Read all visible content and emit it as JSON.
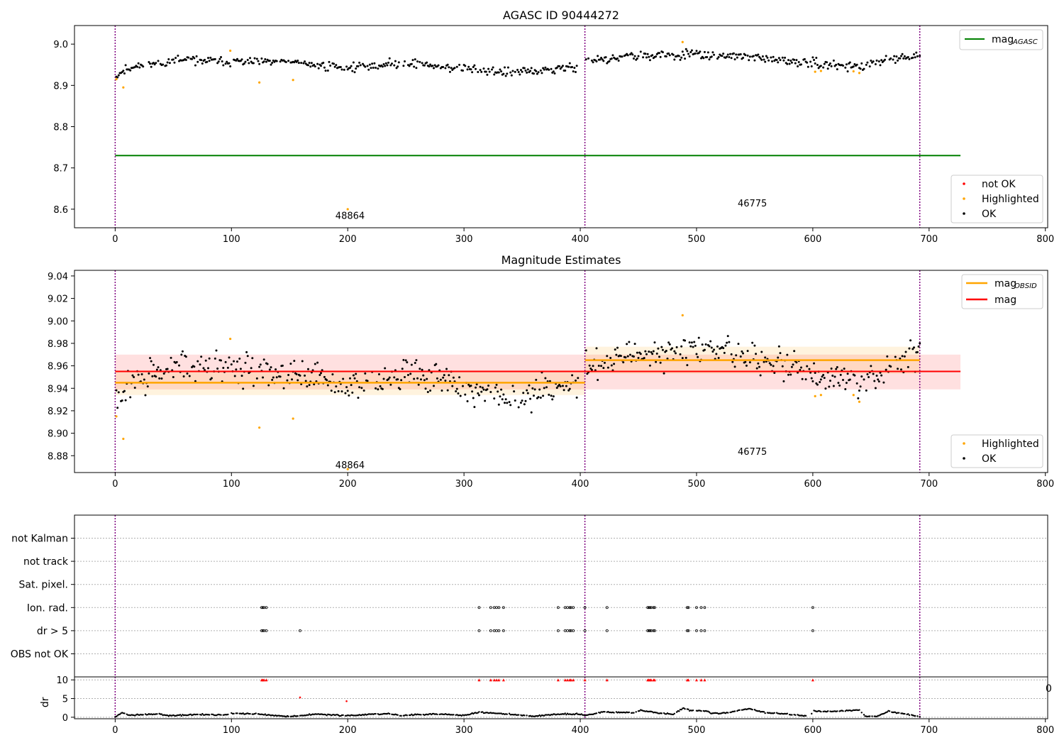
{
  "chart_data": [
    {
      "type": "scatter",
      "title": "AGASC ID 90444272",
      "xlim": [
        -35,
        802
      ],
      "ylim": [
        8.555,
        9.045
      ],
      "x_ticks": [
        0,
        100,
        200,
        300,
        400,
        500,
        600,
        700,
        800
      ],
      "y_ticks": [
        8.6,
        8.7,
        8.8,
        8.9,
        9.0
      ],
      "grid": false,
      "obsid_boundaries": [
        0,
        404,
        692
      ],
      "obsid_labels": [
        {
          "text": "48864",
          "x": 202,
          "y": 8.585
        },
        {
          "text": "46775",
          "x": 548,
          "y": 8.615
        }
      ],
      "series_legend": {
        "location": "lower right",
        "entries": [
          {
            "name": "not OK",
            "color": "#ff0000"
          },
          {
            "name": "Highlighted",
            "color": "#ffa500"
          },
          {
            "name": "OK",
            "color": "#000000"
          }
        ]
      },
      "line_legend": {
        "location": "upper right",
        "entries": [
          {
            "name": "mag",
            "subscript": "AGASC",
            "color": "#008000"
          }
        ]
      },
      "mag_agasc": {
        "value": 8.73,
        "x_range": [
          0,
          727
        ],
        "color": "#008000"
      },
      "ok_segments": [
        {
          "x_range": [
            0,
            398
          ],
          "anchors": [
            [
              0,
              8.925
            ],
            [
              15,
              8.945
            ],
            [
              60,
              8.962
            ],
            [
              100,
              8.957
            ],
            [
              150,
              8.956
            ],
            [
              200,
              8.942
            ],
            [
              250,
              8.955
            ],
            [
              300,
              8.94
            ],
            [
              340,
              8.93
            ],
            [
              398,
              8.945
            ]
          ],
          "spread": 0.009
        },
        {
          "x_range": [
            404,
            692
          ],
          "anchors": [
            [
              404,
              8.96
            ],
            [
              450,
              8.97
            ],
            [
              500,
              8.975
            ],
            [
              550,
              8.968
            ],
            [
              590,
              8.955
            ],
            [
              640,
              8.945
            ],
            [
              692,
              8.975
            ]
          ],
          "spread": 0.009
        }
      ],
      "highlighted_points": [
        [
          1,
          8.915
        ],
        [
          7,
          8.895
        ],
        [
          99,
          8.984
        ],
        [
          124,
          8.907
        ],
        [
          153,
          8.913
        ],
        [
          200,
          8.6
        ],
        [
          488,
          9.005
        ],
        [
          602,
          8.933
        ],
        [
          607,
          8.935
        ],
        [
          635,
          8.934
        ],
        [
          640,
          8.93
        ]
      ],
      "not_ok_points": []
    },
    {
      "type": "scatter",
      "title": "Magnitude Estimates",
      "xlim": [
        -35,
        802
      ],
      "ylim": [
        8.865,
        9.045
      ],
      "x_ticks": [
        0,
        100,
        200,
        300,
        400,
        500,
        600,
        700,
        800
      ],
      "y_ticks": [
        8.88,
        8.9,
        8.92,
        8.94,
        8.96,
        8.98,
        9.0,
        9.02,
        9.04
      ],
      "grid": false,
      "obsid_boundaries": [
        0,
        404,
        692
      ],
      "obsid_labels": [
        {
          "text": "48864",
          "x": 202,
          "y": 8.872
        },
        {
          "text": "46775",
          "x": 548,
          "y": 8.884
        }
      ],
      "series_legend": {
        "location": "lower right",
        "entries": [
          {
            "name": "Highlighted",
            "color": "#ffa500"
          },
          {
            "name": "OK",
            "color": "#000000"
          }
        ]
      },
      "line_legend": {
        "location": "upper right",
        "entries": [
          {
            "name": "mag",
            "subscript": "OBSID",
            "color": "#ffa500"
          },
          {
            "name": "mag",
            "color": "#ff0000"
          }
        ]
      },
      "mag": {
        "value": 8.955,
        "band": [
          8.939,
          8.97
        ],
        "x_range": [
          0,
          727
        ],
        "color": "#ff0000"
      },
      "mag_obsid": [
        {
          "x_range": [
            0,
            404
          ],
          "value": 8.945,
          "band": [
            8.934,
            8.956
          ]
        },
        {
          "x_range": [
            404,
            692
          ],
          "value": 8.965,
          "band": [
            8.953,
            8.977
          ]
        }
      ],
      "ok_segments": [
        {
          "x_range": [
            0,
            398
          ],
          "anchors": [
            [
              0,
              8.925
            ],
            [
              15,
              8.945
            ],
            [
              60,
              8.962
            ],
            [
              100,
              8.957
            ],
            [
              150,
              8.956
            ],
            [
              200,
              8.942
            ],
            [
              250,
              8.955
            ],
            [
              300,
              8.94
            ],
            [
              340,
              8.93
            ],
            [
              398,
              8.945
            ]
          ],
          "spread": 0.011
        },
        {
          "x_range": [
            404,
            692
          ],
          "anchors": [
            [
              404,
              8.96
            ],
            [
              450,
              8.97
            ],
            [
              500,
              8.975
            ],
            [
              550,
              8.968
            ],
            [
              590,
              8.955
            ],
            [
              640,
              8.945
            ],
            [
              692,
              8.975
            ]
          ],
          "spread": 0.011
        }
      ],
      "highlighted_points": [
        [
          1,
          8.915
        ],
        [
          7,
          8.895
        ],
        [
          99,
          8.984
        ],
        [
          124,
          8.905
        ],
        [
          153,
          8.913
        ],
        [
          200,
          8.868
        ],
        [
          488,
          9.005
        ],
        [
          602,
          8.933
        ],
        [
          607,
          8.934
        ],
        [
          635,
          8.934
        ],
        [
          640,
          8.928
        ]
      ]
    },
    {
      "type": "scatter",
      "title": "",
      "xlim": [
        -35,
        802
      ],
      "obsid_boundaries": [
        0,
        404,
        692
      ],
      "flag_categories": [
        "not Kalman",
        "not track",
        "Sat. pixel.",
        "Ion. rad.",
        "dr > 5",
        "OBS not OK"
      ],
      "flag_points": {
        "Ion. rad.": [
          126,
          127,
          128,
          130,
          313,
          323,
          326,
          328,
          330,
          334,
          381,
          387,
          389,
          391,
          392,
          394,
          404,
          423,
          458,
          459,
          460,
          461,
          463,
          464,
          492,
          493,
          500,
          504,
          507,
          600
        ],
        "dr > 5": [
          126,
          127,
          128,
          130,
          159,
          313,
          323,
          326,
          328,
          330,
          334,
          381,
          387,
          389,
          391,
          392,
          394,
          404,
          423,
          458,
          459,
          460,
          461,
          463,
          464,
          492,
          493,
          500,
          504,
          507,
          600
        ]
      }
    },
    {
      "type": "scatter",
      "title": "",
      "ylabel": "dr",
      "xlim": [
        -35,
        802
      ],
      "ylim": [
        -0.4,
        10.8
      ],
      "x_ticks": [
        0,
        100,
        200,
        300,
        400,
        500,
        600,
        700,
        800
      ],
      "y_ticks": [
        0,
        5,
        10
      ],
      "grid": true,
      "obsid_boundaries": [
        0,
        404,
        692
      ],
      "clipped_marker_value": 10,
      "clipped_points_x": [
        126,
        127,
        128,
        130,
        313,
        323,
        326,
        328,
        330,
        334,
        381,
        387,
        389,
        391,
        392,
        394,
        404,
        423,
        458,
        459,
        460,
        461,
        463,
        464,
        492,
        493,
        500,
        504,
        507,
        600
      ],
      "outliers": [
        [
          159,
          5.3
        ],
        [
          199,
          4.3
        ]
      ],
      "dr_profile": [
        [
          0,
          0.1
        ],
        [
          6,
          1.2
        ],
        [
          12,
          0.5
        ],
        [
          38,
          0.9
        ],
        [
          45,
          0.4
        ],
        [
          70,
          0.7
        ],
        [
          98,
          0.6
        ],
        [
          100,
          1.0
        ],
        [
          120,
          0.9
        ],
        [
          138,
          0.4
        ],
        [
          150,
          0.2
        ],
        [
          175,
          0.8
        ],
        [
          200,
          0.4
        ],
        [
          233,
          1.0
        ],
        [
          245,
          0.5
        ],
        [
          275,
          0.9
        ],
        [
          300,
          0.5
        ],
        [
          313,
          1.3
        ],
        [
          330,
          1.0
        ],
        [
          360,
          0.3
        ],
        [
          380,
          0.8
        ],
        [
          398,
          0.9
        ],
        [
          404,
          0.5
        ],
        [
          420,
          1.4
        ],
        [
          445,
          1.2
        ],
        [
          452,
          1.8
        ],
        [
          465,
          1.2
        ],
        [
          480,
          0.8
        ],
        [
          488,
          2.4
        ],
        [
          495,
          1.8
        ],
        [
          510,
          1.6
        ],
        [
          512,
          1.0
        ],
        [
          525,
          1.1
        ],
        [
          545,
          2.3
        ],
        [
          560,
          1.2
        ],
        [
          575,
          0.9
        ],
        [
          598,
          0.3
        ],
        [
          600,
          1.7
        ],
        [
          615,
          1.5
        ],
        [
          640,
          2.0
        ],
        [
          645,
          0.3
        ],
        [
          655,
          0.2
        ],
        [
          665,
          1.6
        ],
        [
          678,
          1.0
        ],
        [
          692,
          0.1
        ]
      ],
      "stray_tick_label": "0"
    }
  ]
}
